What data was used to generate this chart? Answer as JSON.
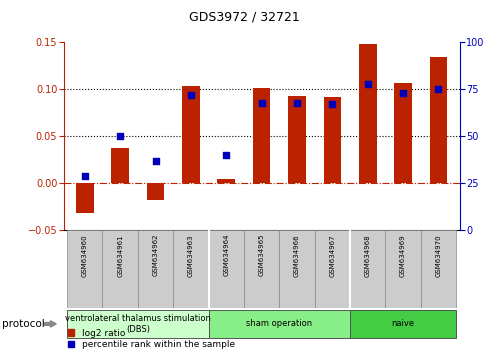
{
  "title": "GDS3972 / 32721",
  "samples": [
    "GSM634960",
    "GSM634961",
    "GSM634962",
    "GSM634963",
    "GSM634964",
    "GSM634965",
    "GSM634966",
    "GSM634967",
    "GSM634968",
    "GSM634969",
    "GSM634970"
  ],
  "log2_ratio": [
    -0.032,
    0.038,
    -0.018,
    0.104,
    0.004,
    0.101,
    0.093,
    0.092,
    0.148,
    0.107,
    0.134
  ],
  "percentile_rank": [
    29,
    50,
    37,
    72,
    40,
    68,
    68,
    67,
    78,
    73,
    75
  ],
  "groups": [
    {
      "label": "ventrolateral thalamus stimulation\n(DBS)",
      "start": 0,
      "end": 3,
      "color": "#ccffcc"
    },
    {
      "label": "sham operation",
      "start": 4,
      "end": 7,
      "color": "#88ee88"
    },
    {
      "label": "naive",
      "start": 8,
      "end": 10,
      "color": "#44cc44"
    }
  ],
  "bar_color": "#bb2200",
  "point_color": "#0000bb",
  "ylim_left": [
    -0.05,
    0.15
  ],
  "ylim_right": [
    0,
    100
  ],
  "yticks_left": [
    -0.05,
    0.0,
    0.05,
    0.1,
    0.15
  ],
  "yticks_right": [
    0,
    25,
    50,
    75,
    100
  ],
  "hlines": [
    0.05,
    0.1
  ],
  "zero_line": 0.0,
  "background_color": "#ffffff",
  "label_bg": "#cccccc",
  "legend_items": [
    "log2 ratio",
    "percentile rank within the sample"
  ],
  "group_boundaries": [
    3.5,
    7.5
  ]
}
